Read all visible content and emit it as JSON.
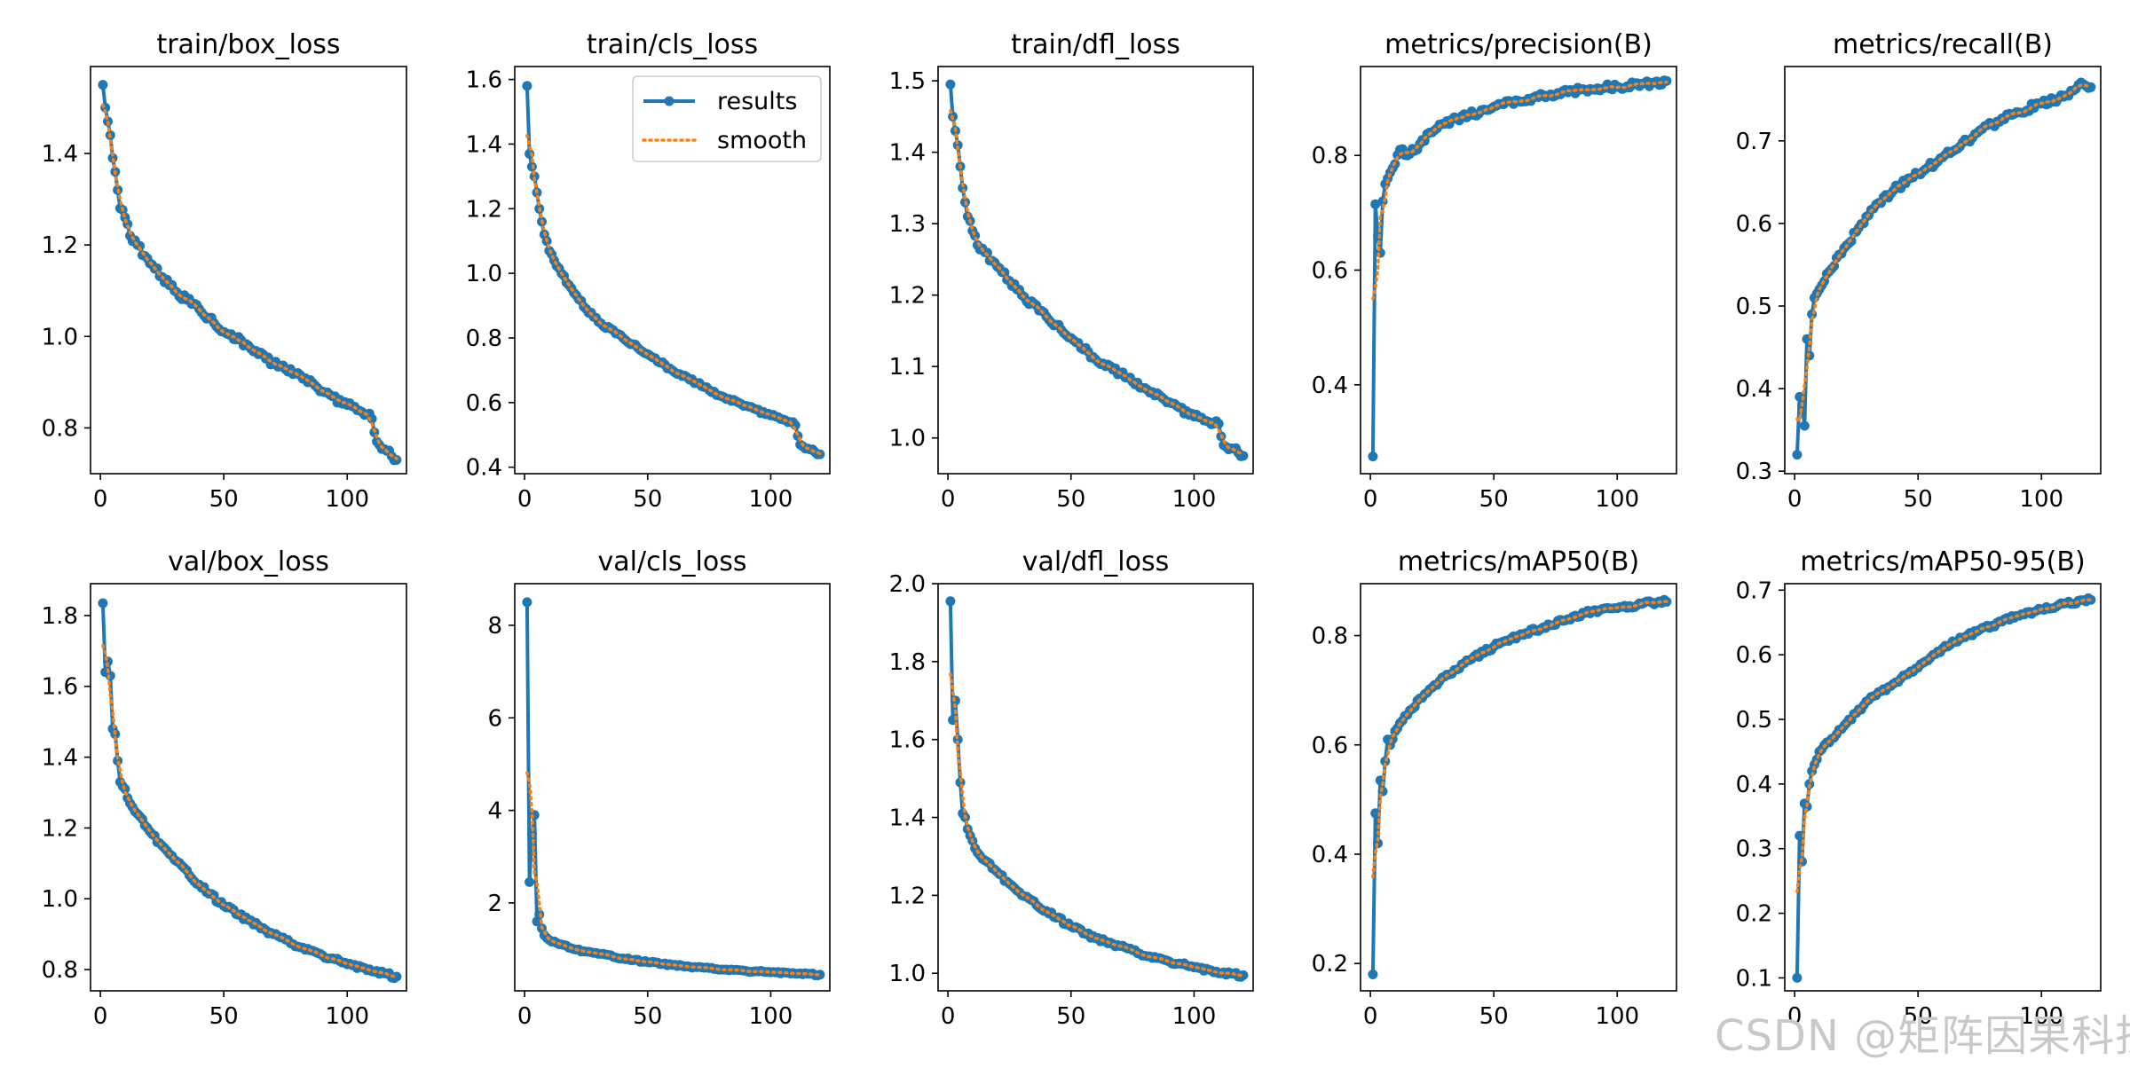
{
  "colors": {
    "results": "#1f77b4",
    "smooth": "#ff7f0e",
    "axis": "#000000"
  },
  "legend": {
    "results_label": "results",
    "smooth_label": "smooth",
    "placement": "upper right",
    "in_chart": "train/cls_loss"
  },
  "watermark": "CSDN @矩阵因果科技",
  "chart_data": [
    {
      "type": "line",
      "title": "train/box_loss",
      "epochs": 120,
      "xlim": [
        -4,
        124
      ],
      "xticks": [
        0,
        50,
        100
      ],
      "ylim": [
        0.7,
        1.59
      ],
      "yticks": [
        0.8,
        1.0,
        1.2,
        1.4
      ],
      "ytick_labels": [
        "0.8",
        "1.0",
        "1.2",
        "1.4"
      ],
      "anchors": [
        [
          1,
          1.55
        ],
        [
          2,
          1.5
        ],
        [
          3,
          1.47
        ],
        [
          4,
          1.44
        ],
        [
          5,
          1.39
        ],
        [
          6,
          1.36
        ],
        [
          7,
          1.32
        ],
        [
          8,
          1.28
        ],
        [
          10,
          1.26
        ],
        [
          12,
          1.22
        ],
        [
          15,
          1.2
        ],
        [
          20,
          1.16
        ],
        [
          25,
          1.13
        ],
        [
          30,
          1.1
        ],
        [
          35,
          1.08
        ],
        [
          40,
          1.06
        ],
        [
          50,
          1.01
        ],
        [
          60,
          0.98
        ],
        [
          70,
          0.94
        ],
        [
          80,
          0.92
        ],
        [
          90,
          0.88
        ],
        [
          100,
          0.85
        ],
        [
          108,
          0.83
        ],
        [
          110,
          0.82
        ],
        [
          112,
          0.77
        ],
        [
          116,
          0.75
        ],
        [
          120,
          0.73
        ]
      ],
      "noise": 0.007
    },
    {
      "type": "line",
      "title": "train/cls_loss",
      "epochs": 120,
      "xlim": [
        -4,
        124
      ],
      "xticks": [
        0,
        50,
        100
      ],
      "ylim": [
        0.38,
        1.64
      ],
      "yticks": [
        0.4,
        0.6,
        0.8,
        1.0,
        1.2,
        1.4,
        1.6
      ],
      "ytick_labels": [
        "0.4",
        "0.6",
        "0.8",
        "1.0",
        "1.2",
        "1.4",
        "1.6"
      ],
      "anchors": [
        [
          1,
          1.58
        ],
        [
          2,
          1.37
        ],
        [
          3,
          1.33
        ],
        [
          4,
          1.3
        ],
        [
          5,
          1.25
        ],
        [
          6,
          1.2
        ],
        [
          7,
          1.16
        ],
        [
          8,
          1.12
        ],
        [
          10,
          1.07
        ],
        [
          12,
          1.04
        ],
        [
          15,
          1.0
        ],
        [
          20,
          0.94
        ],
        [
          25,
          0.89
        ],
        [
          30,
          0.85
        ],
        [
          40,
          0.8
        ],
        [
          50,
          0.75
        ],
        [
          60,
          0.7
        ],
        [
          70,
          0.66
        ],
        [
          80,
          0.62
        ],
        [
          90,
          0.59
        ],
        [
          100,
          0.56
        ],
        [
          108,
          0.54
        ],
        [
          110,
          0.53
        ],
        [
          112,
          0.47
        ],
        [
          116,
          0.455
        ],
        [
          120,
          0.44
        ]
      ],
      "noise": 0.005
    },
    {
      "type": "line",
      "title": "train/dfl_loss",
      "epochs": 120,
      "xlim": [
        -4,
        124
      ],
      "xticks": [
        0,
        50,
        100
      ],
      "ylim": [
        0.95,
        1.52
      ],
      "yticks": [
        1.0,
        1.1,
        1.2,
        1.3,
        1.4,
        1.5
      ],
      "ytick_labels": [
        "1.0",
        "1.1",
        "1.2",
        "1.3",
        "1.4",
        "1.5"
      ],
      "anchors": [
        [
          1,
          1.495
        ],
        [
          2,
          1.45
        ],
        [
          3,
          1.43
        ],
        [
          4,
          1.41
        ],
        [
          5,
          1.38
        ],
        [
          6,
          1.35
        ],
        [
          7,
          1.33
        ],
        [
          8,
          1.31
        ],
        [
          10,
          1.29
        ],
        [
          12,
          1.27
        ],
        [
          15,
          1.26
        ],
        [
          20,
          1.24
        ],
        [
          25,
          1.22
        ],
        [
          30,
          1.2
        ],
        [
          40,
          1.17
        ],
        [
          50,
          1.14
        ],
        [
          60,
          1.11
        ],
        [
          70,
          1.09
        ],
        [
          80,
          1.07
        ],
        [
          90,
          1.05
        ],
        [
          100,
          1.03
        ],
        [
          108,
          1.02
        ],
        [
          110,
          1.02
        ],
        [
          112,
          0.99
        ],
        [
          116,
          0.985
        ],
        [
          120,
          0.975
        ]
      ],
      "noise": 0.004
    },
    {
      "type": "line",
      "title": "metrics/precision(B)",
      "epochs": 120,
      "xlim": [
        -4,
        124
      ],
      "xticks": [
        0,
        50,
        100
      ],
      "ylim": [
        0.245,
        0.955
      ],
      "yticks": [
        0.4,
        0.6,
        0.8
      ],
      "ytick_labels": [
        "0.4",
        "0.6",
        "0.8"
      ],
      "anchors": [
        [
          1,
          0.275
        ],
        [
          2,
          0.715
        ],
        [
          3,
          0.66
        ],
        [
          4,
          0.63
        ],
        [
          5,
          0.72
        ],
        [
          6,
          0.75
        ],
        [
          8,
          0.77
        ],
        [
          10,
          0.785
        ],
        [
          12,
          0.81
        ],
        [
          15,
          0.8
        ],
        [
          20,
          0.82
        ],
        [
          25,
          0.84
        ],
        [
          30,
          0.855
        ],
        [
          40,
          0.87
        ],
        [
          50,
          0.885
        ],
        [
          60,
          0.895
        ],
        [
          70,
          0.905
        ],
        [
          80,
          0.91
        ],
        [
          90,
          0.915
        ],
        [
          100,
          0.92
        ],
        [
          110,
          0.925
        ],
        [
          120,
          0.93
        ]
      ],
      "noise": 0.006
    },
    {
      "type": "line",
      "title": "metrics/recall(B)",
      "epochs": 120,
      "xlim": [
        -4,
        124
      ],
      "xticks": [
        0,
        50,
        100
      ],
      "ylim": [
        0.297,
        0.79
      ],
      "yticks": [
        0.3,
        0.4,
        0.5,
        0.6,
        0.7
      ],
      "ytick_labels": [
        "0.3",
        "0.4",
        "0.5",
        "0.6",
        "0.7"
      ],
      "anchors": [
        [
          1,
          0.32
        ],
        [
          2,
          0.39
        ],
        [
          3,
          0.38
        ],
        [
          4,
          0.355
        ],
        [
          5,
          0.46
        ],
        [
          6,
          0.44
        ],
        [
          7,
          0.49
        ],
        [
          8,
          0.51
        ],
        [
          10,
          0.52
        ],
        [
          12,
          0.53
        ],
        [
          15,
          0.545
        ],
        [
          20,
          0.57
        ],
        [
          25,
          0.59
        ],
        [
          30,
          0.61
        ],
        [
          40,
          0.64
        ],
        [
          50,
          0.66
        ],
        [
          60,
          0.68
        ],
        [
          70,
          0.7
        ],
        [
          80,
          0.72
        ],
        [
          90,
          0.735
        ],
        [
          100,
          0.745
        ],
        [
          110,
          0.755
        ],
        [
          115,
          0.768
        ],
        [
          120,
          0.765
        ]
      ],
      "noise": 0.004
    },
    {
      "type": "line",
      "title": "val/box_loss",
      "epochs": 120,
      "xlim": [
        -4,
        124
      ],
      "xticks": [
        0,
        50,
        100
      ],
      "ylim": [
        0.74,
        1.89
      ],
      "yticks": [
        0.8,
        1.0,
        1.2,
        1.4,
        1.6,
        1.8
      ],
      "ytick_labels": [
        "0.8",
        "1.0",
        "1.2",
        "1.4",
        "1.6",
        "1.8"
      ],
      "anchors": [
        [
          1,
          1.835
        ],
        [
          2,
          1.64
        ],
        [
          3,
          1.67
        ],
        [
          4,
          1.63
        ],
        [
          5,
          1.48
        ],
        [
          6,
          1.465
        ],
        [
          7,
          1.39
        ],
        [
          8,
          1.33
        ],
        [
          10,
          1.31
        ],
        [
          12,
          1.27
        ],
        [
          15,
          1.24
        ],
        [
          20,
          1.19
        ],
        [
          25,
          1.15
        ],
        [
          30,
          1.11
        ],
        [
          40,
          1.04
        ],
        [
          50,
          0.98
        ],
        [
          60,
          0.94
        ],
        [
          70,
          0.9
        ],
        [
          80,
          0.865
        ],
        [
          90,
          0.84
        ],
        [
          100,
          0.815
        ],
        [
          110,
          0.795
        ],
        [
          120,
          0.78
        ]
      ],
      "noise": 0.006
    },
    {
      "type": "line",
      "title": "val/cls_loss",
      "epochs": 120,
      "xlim": [
        -4,
        124
      ],
      "xticks": [
        0,
        50,
        100
      ],
      "ylim": [
        0.1,
        8.9
      ],
      "yticks": [
        2,
        4,
        6,
        8
      ],
      "ytick_labels": [
        "2",
        "4",
        "6",
        "8"
      ],
      "anchors": [
        [
          1,
          8.5
        ],
        [
          2,
          2.45
        ],
        [
          3,
          3.5
        ],
        [
          4,
          3.9
        ],
        [
          5,
          1.6
        ],
        [
          6,
          1.75
        ],
        [
          7,
          1.45
        ],
        [
          8,
          1.3
        ],
        [
          10,
          1.2
        ],
        [
          15,
          1.1
        ],
        [
          20,
          1.0
        ],
        [
          30,
          0.9
        ],
        [
          40,
          0.8
        ],
        [
          50,
          0.72
        ],
        [
          60,
          0.66
        ],
        [
          70,
          0.61
        ],
        [
          80,
          0.56
        ],
        [
          90,
          0.53
        ],
        [
          100,
          0.5
        ],
        [
          110,
          0.47
        ],
        [
          120,
          0.45
        ]
      ],
      "noise": 0.02
    },
    {
      "type": "line",
      "title": "val/dfl_loss",
      "epochs": 120,
      "xlim": [
        -4,
        124
      ],
      "xticks": [
        0,
        50,
        100
      ],
      "ylim": [
        0.955,
        2.0
      ],
      "yticks": [
        1.0,
        1.2,
        1.4,
        1.6,
        1.8,
        2.0
      ],
      "ytick_labels": [
        "1.0",
        "1.2",
        "1.4",
        "1.6",
        "1.8",
        "2.0"
      ],
      "anchors": [
        [
          1,
          1.955
        ],
        [
          2,
          1.65
        ],
        [
          3,
          1.7
        ],
        [
          4,
          1.6
        ],
        [
          5,
          1.49
        ],
        [
          6,
          1.41
        ],
        [
          7,
          1.4
        ],
        [
          8,
          1.37
        ],
        [
          10,
          1.34
        ],
        [
          12,
          1.31
        ],
        [
          15,
          1.29
        ],
        [
          20,
          1.26
        ],
        [
          25,
          1.23
        ],
        [
          30,
          1.2
        ],
        [
          40,
          1.16
        ],
        [
          50,
          1.12
        ],
        [
          60,
          1.09
        ],
        [
          70,
          1.07
        ],
        [
          80,
          1.045
        ],
        [
          90,
          1.03
        ],
        [
          100,
          1.015
        ],
        [
          110,
          1.0
        ],
        [
          120,
          0.995
        ]
      ],
      "noise": 0.005
    },
    {
      "type": "line",
      "title": "metrics/mAP50(B)",
      "epochs": 120,
      "xlim": [
        -4,
        124
      ],
      "xticks": [
        0,
        50,
        100
      ],
      "ylim": [
        0.15,
        0.895
      ],
      "yticks": [
        0.2,
        0.4,
        0.6,
        0.8
      ],
      "ytick_labels": [
        "0.2",
        "0.4",
        "0.6",
        "0.8"
      ],
      "anchors": [
        [
          1,
          0.18
        ],
        [
          2,
          0.475
        ],
        [
          3,
          0.42
        ],
        [
          4,
          0.535
        ],
        [
          5,
          0.515
        ],
        [
          6,
          0.57
        ],
        [
          7,
          0.61
        ],
        [
          8,
          0.6
        ],
        [
          10,
          0.625
        ],
        [
          12,
          0.64
        ],
        [
          15,
          0.655
        ],
        [
          20,
          0.685
        ],
        [
          25,
          0.705
        ],
        [
          30,
          0.725
        ],
        [
          40,
          0.755
        ],
        [
          50,
          0.78
        ],
        [
          60,
          0.8
        ],
        [
          70,
          0.815
        ],
        [
          80,
          0.83
        ],
        [
          90,
          0.845
        ],
        [
          100,
          0.85
        ],
        [
          110,
          0.858
        ],
        [
          120,
          0.862
        ]
      ],
      "noise": 0.004
    },
    {
      "type": "line",
      "title": "metrics/mAP50-95(B)",
      "epochs": 120,
      "xlim": [
        -4,
        124
      ],
      "xticks": [
        0,
        50,
        100
      ],
      "ylim": [
        0.08,
        0.71
      ],
      "yticks": [
        0.1,
        0.2,
        0.3,
        0.4,
        0.5,
        0.6,
        0.7
      ],
      "ytick_labels": [
        "0.1",
        "0.2",
        "0.3",
        "0.4",
        "0.5",
        "0.6",
        "0.7"
      ],
      "anchors": [
        [
          1,
          0.1
        ],
        [
          2,
          0.32
        ],
        [
          3,
          0.28
        ],
        [
          4,
          0.37
        ],
        [
          5,
          0.365
        ],
        [
          6,
          0.4
        ],
        [
          7,
          0.42
        ],
        [
          8,
          0.43
        ],
        [
          10,
          0.45
        ],
        [
          12,
          0.46
        ],
        [
          15,
          0.47
        ],
        [
          20,
          0.49
        ],
        [
          25,
          0.51
        ],
        [
          30,
          0.53
        ],
        [
          40,
          0.555
        ],
        [
          50,
          0.58
        ],
        [
          60,
          0.61
        ],
        [
          70,
          0.63
        ],
        [
          80,
          0.645
        ],
        [
          90,
          0.66
        ],
        [
          100,
          0.67
        ],
        [
          110,
          0.68
        ],
        [
          120,
          0.685
        ]
      ],
      "noise": 0.003
    }
  ]
}
